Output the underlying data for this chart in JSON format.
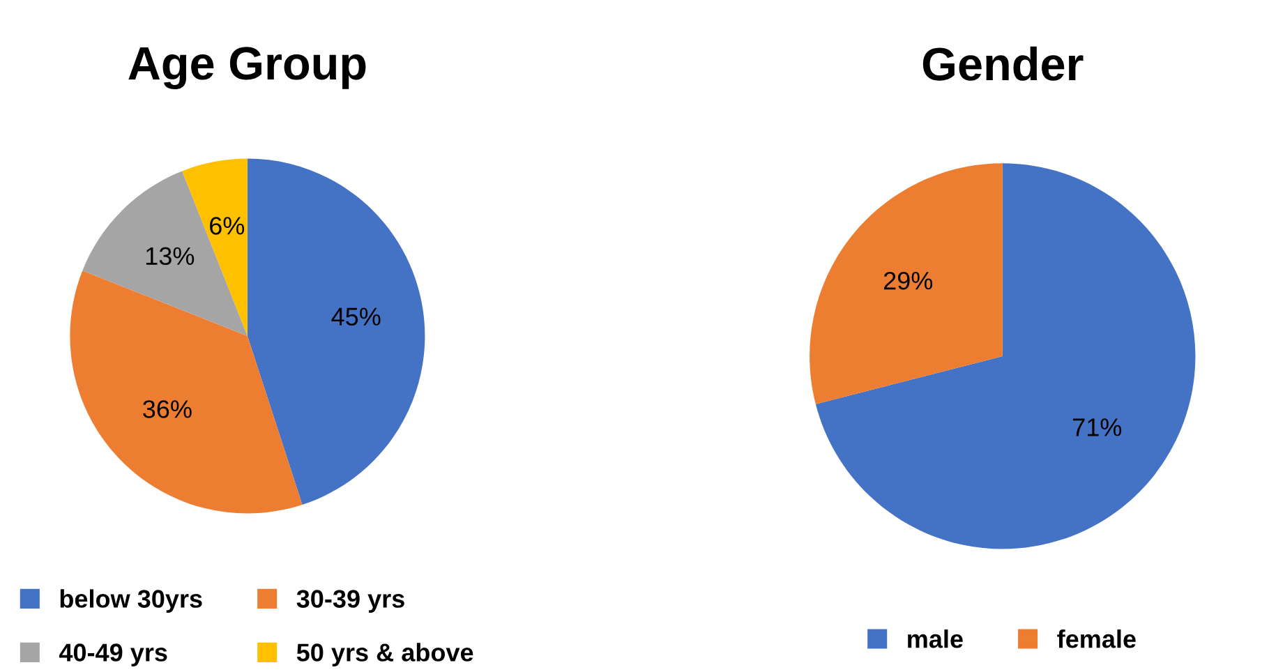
{
  "chart_data": [
    {
      "type": "pie",
      "title": "Age Group",
      "categories": [
        "below 30yrs",
        "30-39 yrs",
        "40-49 yrs",
        "50 yrs & above"
      ],
      "values": [
        45,
        36,
        13,
        6
      ],
      "colors": [
        "#4472c4",
        "#ed7d31",
        "#a5a5a5",
        "#ffc000"
      ],
      "value_labels": [
        "45%",
        "36%",
        "13%",
        "6%"
      ],
      "legend": "bottom"
    },
    {
      "type": "pie",
      "title": "Gender",
      "categories": [
        "male",
        "female"
      ],
      "values": [
        71,
        29
      ],
      "colors": [
        "#4472c4",
        "#ed7d31"
      ],
      "value_labels": [
        "71%",
        "29%"
      ],
      "legend": "bottom"
    }
  ]
}
